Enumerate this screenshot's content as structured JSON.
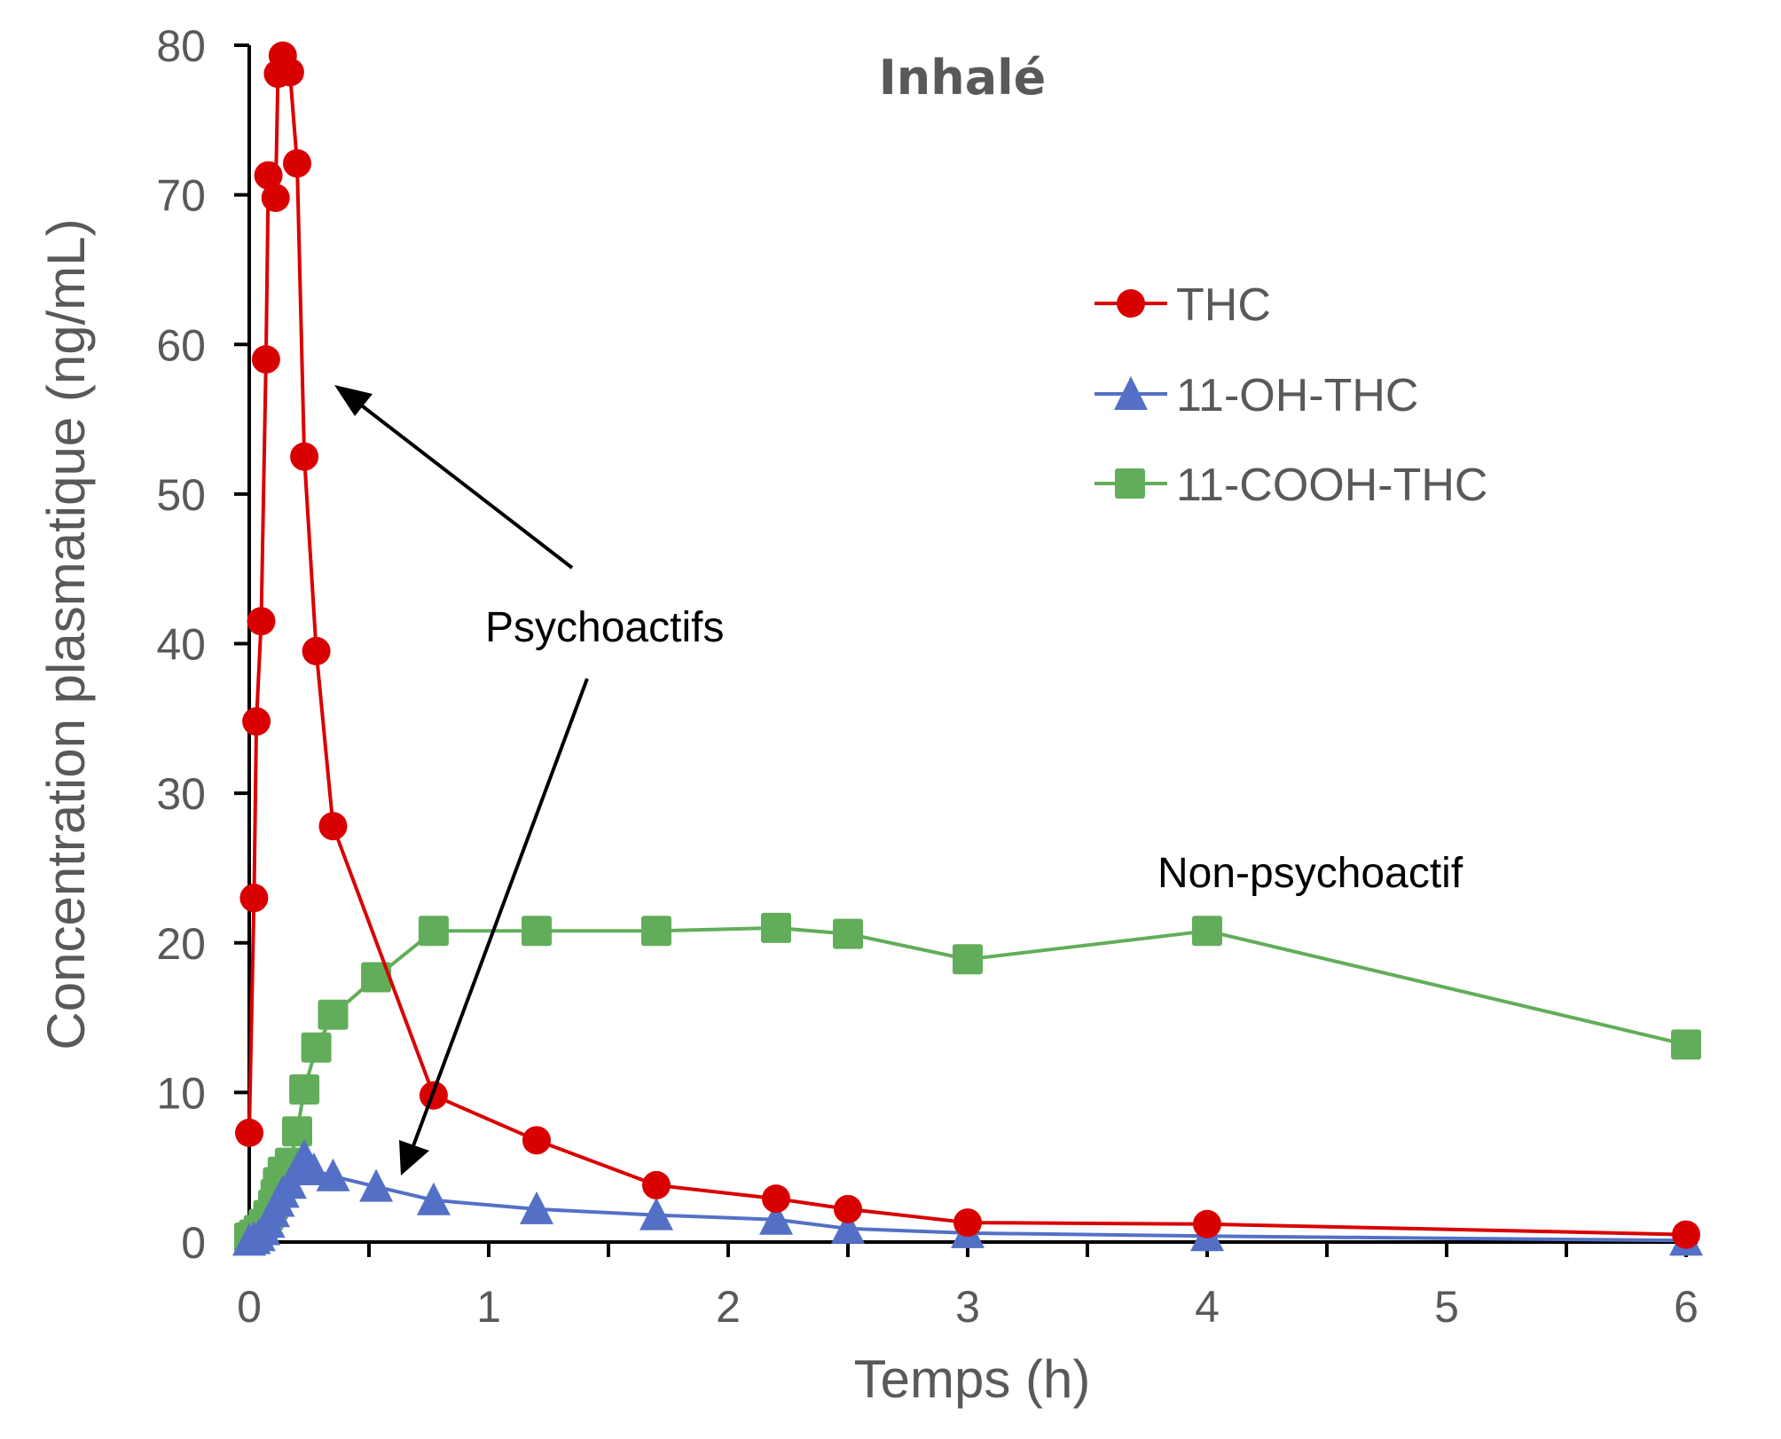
{
  "chart_data": {
    "type": "line",
    "title": "Inhalé",
    "xlabel": "Temps (h)",
    "ylabel": "Concentration plasmatique (ng/mL)",
    "xlim": [
      0,
      6
    ],
    "ylim": [
      0,
      80
    ],
    "xticks": [
      "0",
      "1",
      "2",
      "3",
      "4",
      "5",
      "6"
    ],
    "yticks": [
      "0",
      "10",
      "20",
      "30",
      "40",
      "50",
      "60",
      "70",
      "80"
    ],
    "grid": false,
    "legend_position": "top-right",
    "series": [
      {
        "name": "THC",
        "color": "#d90000",
        "marker": "circle",
        "x": [
          0.0,
          0.02,
          0.03,
          0.05,
          0.07,
          0.08,
          0.11,
          0.12,
          0.14,
          0.17,
          0.2,
          0.23,
          0.28,
          0.35,
          0.77,
          1.2,
          1.7,
          2.2,
          2.5,
          3.0,
          4.0,
          6.0
        ],
        "y": [
          7.3,
          23.0,
          34.8,
          41.5,
          59.0,
          71.3,
          69.8,
          78.1,
          79.3,
          78.2,
          72.1,
          52.5,
          39.5,
          27.8,
          9.8,
          6.8,
          3.8,
          2.9,
          2.2,
          1.3,
          1.2,
          0.5
        ]
      },
      {
        "name": "11-OH-THC",
        "color": "#5470c6",
        "marker": "triangle",
        "x": [
          0.0,
          0.02,
          0.04,
          0.06,
          0.08,
          0.1,
          0.12,
          0.14,
          0.17,
          0.2,
          0.23,
          0.27,
          0.35,
          0.53,
          0.77,
          1.2,
          1.7,
          2.2,
          2.5,
          3.0,
          4.0,
          6.0
        ],
        "y": [
          0.1,
          0.2,
          0.4,
          0.8,
          1.3,
          2.0,
          2.7,
          3.3,
          3.9,
          4.8,
          5.7,
          4.8,
          4.4,
          3.7,
          2.8,
          2.2,
          1.8,
          1.5,
          0.9,
          0.6,
          0.4,
          0.1
        ]
      },
      {
        "name": "11-COOH-THC",
        "color": "#62ad5a",
        "marker": "square",
        "x": [
          0.0,
          0.02,
          0.04,
          0.06,
          0.08,
          0.1,
          0.11,
          0.12,
          0.14,
          0.17,
          0.2,
          0.23,
          0.28,
          0.35,
          0.53,
          0.77,
          1.2,
          1.7,
          2.2,
          2.5,
          3.0,
          4.0,
          6.0
        ],
        "y": [
          0.3,
          0.5,
          0.8,
          1.2,
          1.8,
          2.5,
          3.2,
          4.0,
          4.7,
          5.3,
          7.4,
          10.2,
          13.0,
          15.2,
          17.7,
          20.8,
          20.8,
          20.8,
          21.0,
          20.6,
          18.9,
          20.8,
          13.2
        ]
      }
    ],
    "annotations": [
      {
        "text": "Psychoactifs",
        "arrows_to": [
          "THC",
          "11-OH-THC"
        ]
      },
      {
        "text": "Non-psychoactif",
        "refers_to": "11-COOH-THC"
      }
    ]
  }
}
